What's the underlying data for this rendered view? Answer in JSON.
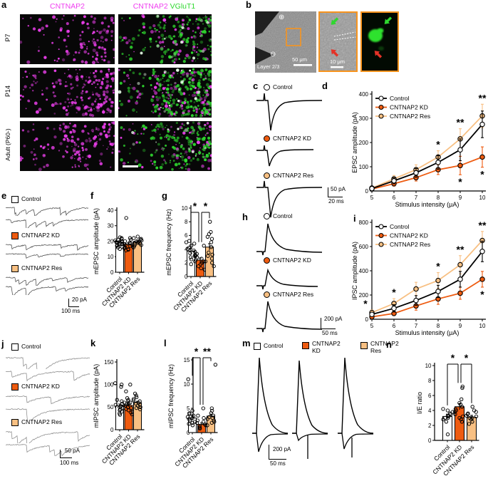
{
  "colors": {
    "kd_orange": "#ee5b10",
    "res_orange": "#f8c083",
    "control_fill": "#ffffff",
    "magenta": "#e83ee8",
    "green": "#2fd82f",
    "red_arrow": "#e43227",
    "inset_border": "#f7941e"
  },
  "panel_a": {
    "label": "a",
    "header_left": "CNTNAP2",
    "header_right_1": "CNTNAP2",
    "header_right_2": "VGluT1",
    "rows": [
      "P7",
      "P14",
      "Adult (P60-)"
    ]
  },
  "panel_b": {
    "label": "b",
    "plus": "⊕",
    "minus": "⊖",
    "layer": "Layer 2/3",
    "scale_main": "50 μm",
    "scale_inset": "10 μm"
  },
  "panel_c": {
    "label": "c",
    "legend": [
      "Control",
      "CNTNAP2 KD",
      "CNTNAP2 Res"
    ],
    "scale_v": "50 pA",
    "scale_h": "20 ms"
  },
  "panel_e": {
    "label": "e",
    "legend": [
      "Control",
      "CNTNAP2 KD",
      "CNTNAP2 Res"
    ],
    "scale_v": "20 pA",
    "scale_h": "100 ms"
  },
  "panel_h": {
    "label": "h",
    "legend": [
      "Control",
      "CNTNAP2 KD",
      "CNTNAP2 Res"
    ],
    "scale_v": "200 pA",
    "scale_h": "50 ms"
  },
  "panel_j": {
    "label": "j",
    "legend": [
      "Control",
      "CNTNAP2 KD",
      "CNTNAP2 Res"
    ],
    "scale_v": "50 pA",
    "scale_h": "100 ms"
  },
  "panel_m": {
    "label": "m",
    "legend": [
      "Control",
      "CNTNAP2 KD",
      "CNTNAP2 Res"
    ],
    "scale_v": "200 pA",
    "scale_h": "50 ms"
  },
  "panel_labels": {
    "d": "d",
    "f": "f",
    "g": "g",
    "i": "i",
    "k": "k",
    "l": "l",
    "n": "n"
  },
  "chart_data": [
    {
      "id": "d",
      "type": "line",
      "title": "",
      "xlabel": "Stimulus intensity (μA)",
      "ylabel": "EPSC amplitude (pA)",
      "x": [
        5,
        6,
        7,
        8,
        9,
        10
      ],
      "ylim": [
        0,
        400
      ],
      "yticks": [
        0,
        100,
        200,
        300,
        400
      ],
      "legend_position": "top-left",
      "grid": false,
      "series": [
        {
          "name": "Control",
          "values": [
            10,
            42,
            75,
            118,
            170,
            275
          ],
          "errors": [
            5,
            12,
            18,
            28,
            45,
            55
          ]
        },
        {
          "name": "CNTNAP2 KD",
          "values": [
            8,
            30,
            55,
            88,
            105,
            140
          ],
          "errors": [
            4,
            10,
            14,
            20,
            38,
            42
          ]
        },
        {
          "name": "CNTNAP2 Res",
          "values": [
            12,
            50,
            88,
            140,
            215,
            310
          ],
          "errors": [
            6,
            14,
            20,
            26,
            42,
            48
          ]
        }
      ],
      "annotations": [
        {
          "x": 8,
          "pos": "above",
          "text": "*"
        },
        {
          "x": 9,
          "pos": "above",
          "text": "**"
        },
        {
          "x": 10,
          "pos": "above",
          "text": "**"
        },
        {
          "x": 9,
          "pos": "below",
          "text": "*"
        },
        {
          "x": 10,
          "pos": "below",
          "text": "*"
        }
      ]
    },
    {
      "id": "i",
      "type": "line",
      "title": "",
      "xlabel": "Stimulus intensity (μA)",
      "ylabel": "IPSC amplitude (pA)",
      "x": [
        5,
        6,
        7,
        8,
        9,
        10
      ],
      "ylim": [
        0,
        800
      ],
      "yticks": [
        0,
        200,
        400,
        600,
        800
      ],
      "legend_position": "top-left",
      "grid": false,
      "series": [
        {
          "name": "Control",
          "values": [
            40,
            90,
            155,
            230,
            330,
            560
          ],
          "errors": [
            15,
            30,
            40,
            50,
            65,
            85
          ]
        },
        {
          "name": "CNTNAP2 KD",
          "values": [
            20,
            48,
            110,
            168,
            215,
            330
          ],
          "errors": [
            10,
            18,
            35,
            45,
            50,
            65
          ]
        },
        {
          "name": "CNTNAP2 Res",
          "values": [
            55,
            130,
            250,
            320,
            450,
            650
          ],
          "errors": [
            22,
            40,
            55,
            65,
            75,
            75
          ]
        }
      ],
      "annotations": [
        {
          "x": 5,
          "pos": "above",
          "text": "*",
          "dx": -9
        },
        {
          "x": 6,
          "pos": "above",
          "text": "*"
        },
        {
          "x": 8,
          "pos": "above",
          "text": "*"
        },
        {
          "x": 9,
          "pos": "above",
          "text": "**"
        },
        {
          "x": 10,
          "pos": "above",
          "text": "**"
        },
        {
          "x": 10,
          "pos": "below",
          "text": "*"
        }
      ]
    },
    {
      "id": "f",
      "type": "bar",
      "ylabel": "mEPSC amplitude (pA)",
      "ylim": [
        0,
        40
      ],
      "yticks": [
        0,
        10,
        20,
        30,
        40
      ],
      "categories": [
        "Control",
        "CNTNAP2 KD",
        "CNTNAP2 Res"
      ],
      "values": [
        19.5,
        18,
        19.5
      ],
      "errors": [
        0.8,
        1,
        0.8
      ],
      "points": [
        [
          15,
          16,
          16.5,
          17,
          17.5,
          18,
          18,
          18.5,
          19,
          19.5,
          19.5,
          20,
          20.5,
          21,
          21.5,
          22,
          22.5
        ],
        [
          14,
          14.5,
          15,
          15.5,
          16,
          16.5,
          17,
          17.5,
          18,
          18.5,
          19,
          20,
          21,
          22,
          35
        ],
        [
          16,
          17,
          17.5,
          18,
          18.5,
          19,
          19,
          19.5,
          20,
          20.5,
          21,
          21.5,
          22,
          23
        ]
      ],
      "sig": []
    },
    {
      "id": "g",
      "type": "bar",
      "ylabel": "mEPSC frequency (Hz)",
      "ylim": [
        0,
        10
      ],
      "yticks": [
        0,
        2,
        4,
        6,
        8,
        10
      ],
      "categories": [
        "Control",
        "CNTNAP2 KD",
        "CNTNAP2 Res"
      ],
      "values": [
        3.7,
        2.4,
        4.3
      ],
      "errors": [
        0.4,
        0.3,
        0.5
      ],
      "points": [
        [
          1.8,
          2.2,
          2.5,
          2.8,
          3,
          3.2,
          3.4,
          3.6,
          3.8,
          4,
          4.2,
          4.5,
          4.8,
          5,
          5.2
        ],
        [
          1,
          1.2,
          1.5,
          1.8,
          2,
          2.2,
          2.4,
          2.6,
          2.8,
          3,
          3.3,
          4.5
        ],
        [
          1.5,
          2,
          2.2,
          2.6,
          3,
          3.2,
          3.5,
          4.3,
          5,
          5.5,
          5.8,
          6.2,
          6.5,
          8
        ]
      ],
      "sig": [
        {
          "a": 0,
          "b": 1,
          "text": "*"
        },
        {
          "a": 1,
          "b": 2,
          "text": "*"
        }
      ]
    },
    {
      "id": "k",
      "type": "bar",
      "ylabel": "mIPSC amplitude (pA)",
      "ylim": [
        0,
        150
      ],
      "yticks": [
        0,
        50,
        100,
        150
      ],
      "categories": [
        "Control",
        "CNTNAP2 KD",
        "CNTNAP2 Res"
      ],
      "values": [
        53,
        54,
        60
      ],
      "errors": [
        4,
        3,
        3
      ],
      "points": [
        [
          33,
          36,
          40,
          43,
          45,
          48,
          50,
          52,
          55,
          58,
          60,
          63,
          66,
          95,
          100,
          103
        ],
        [
          34,
          38,
          40,
          43,
          46,
          48,
          50,
          53,
          56,
          58,
          60,
          63,
          66,
          70,
          85,
          100
        ],
        [
          45,
          48,
          50,
          53,
          55,
          58,
          60,
          63,
          65,
          68,
          72,
          76,
          80
        ]
      ],
      "sig": []
    },
    {
      "id": "l",
      "type": "bar",
      "ylabel": "mIPSC frequency (Hz)",
      "ylim": [
        0,
        15
      ],
      "yticks": [
        0,
        5,
        10,
        15
      ],
      "categories": [
        "Control",
        "CNTNAP2 KD",
        "CNTNAP2 Res"
      ],
      "values": [
        3,
        1.7,
        3.4
      ],
      "errors": [
        0.5,
        0.3,
        0.4
      ],
      "points": [
        [
          1.5,
          1.8,
          2,
          2.2,
          2.5,
          2.8,
          3,
          3.2,
          3.5,
          3.8,
          4,
          4.5,
          11
        ],
        [
          0.8,
          1,
          1.2,
          1.5,
          1.7,
          2,
          2.2,
          2.5,
          3,
          3.5,
          5
        ],
        [
          1.5,
          2,
          2.2,
          2.5,
          2.8,
          3,
          3.2,
          3.5,
          4,
          4.5,
          5,
          14
        ]
      ],
      "sig": [
        {
          "a": 0,
          "b": 1,
          "text": "*"
        },
        {
          "a": 1,
          "b": 2,
          "text": "**"
        }
      ]
    },
    {
      "id": "n",
      "type": "bar",
      "ylabel": "I/E ratio",
      "ylim": [
        0,
        10
      ],
      "yticks": [
        0,
        2,
        4,
        6,
        8,
        10
      ],
      "categories": [
        "Control",
        "CNTNAP2 KD",
        "CNTNAP2 Res"
      ],
      "values": [
        3.2,
        4.5,
        3.1
      ],
      "errors": [
        0.3,
        0.4,
        0.25
      ],
      "points": [
        [
          0.8,
          2.5,
          2.8,
          3,
          3,
          3.2,
          3.3,
          3.5,
          3.6,
          3.8,
          4,
          4.2
        ],
        [
          2.5,
          2.8,
          3,
          3.2,
          3.5,
          3.8,
          4,
          4.2,
          4.5,
          4.8,
          5,
          5.5,
          7,
          7.2
        ],
        [
          2.2,
          2.5,
          2.8,
          3,
          3,
          3.2,
          3.3,
          3.5,
          3.6,
          3.8,
          4,
          4.5
        ]
      ],
      "sig": [
        {
          "a": 0,
          "b": 1,
          "text": "*"
        },
        {
          "a": 1,
          "b": 2,
          "text": "*"
        }
      ]
    }
  ]
}
